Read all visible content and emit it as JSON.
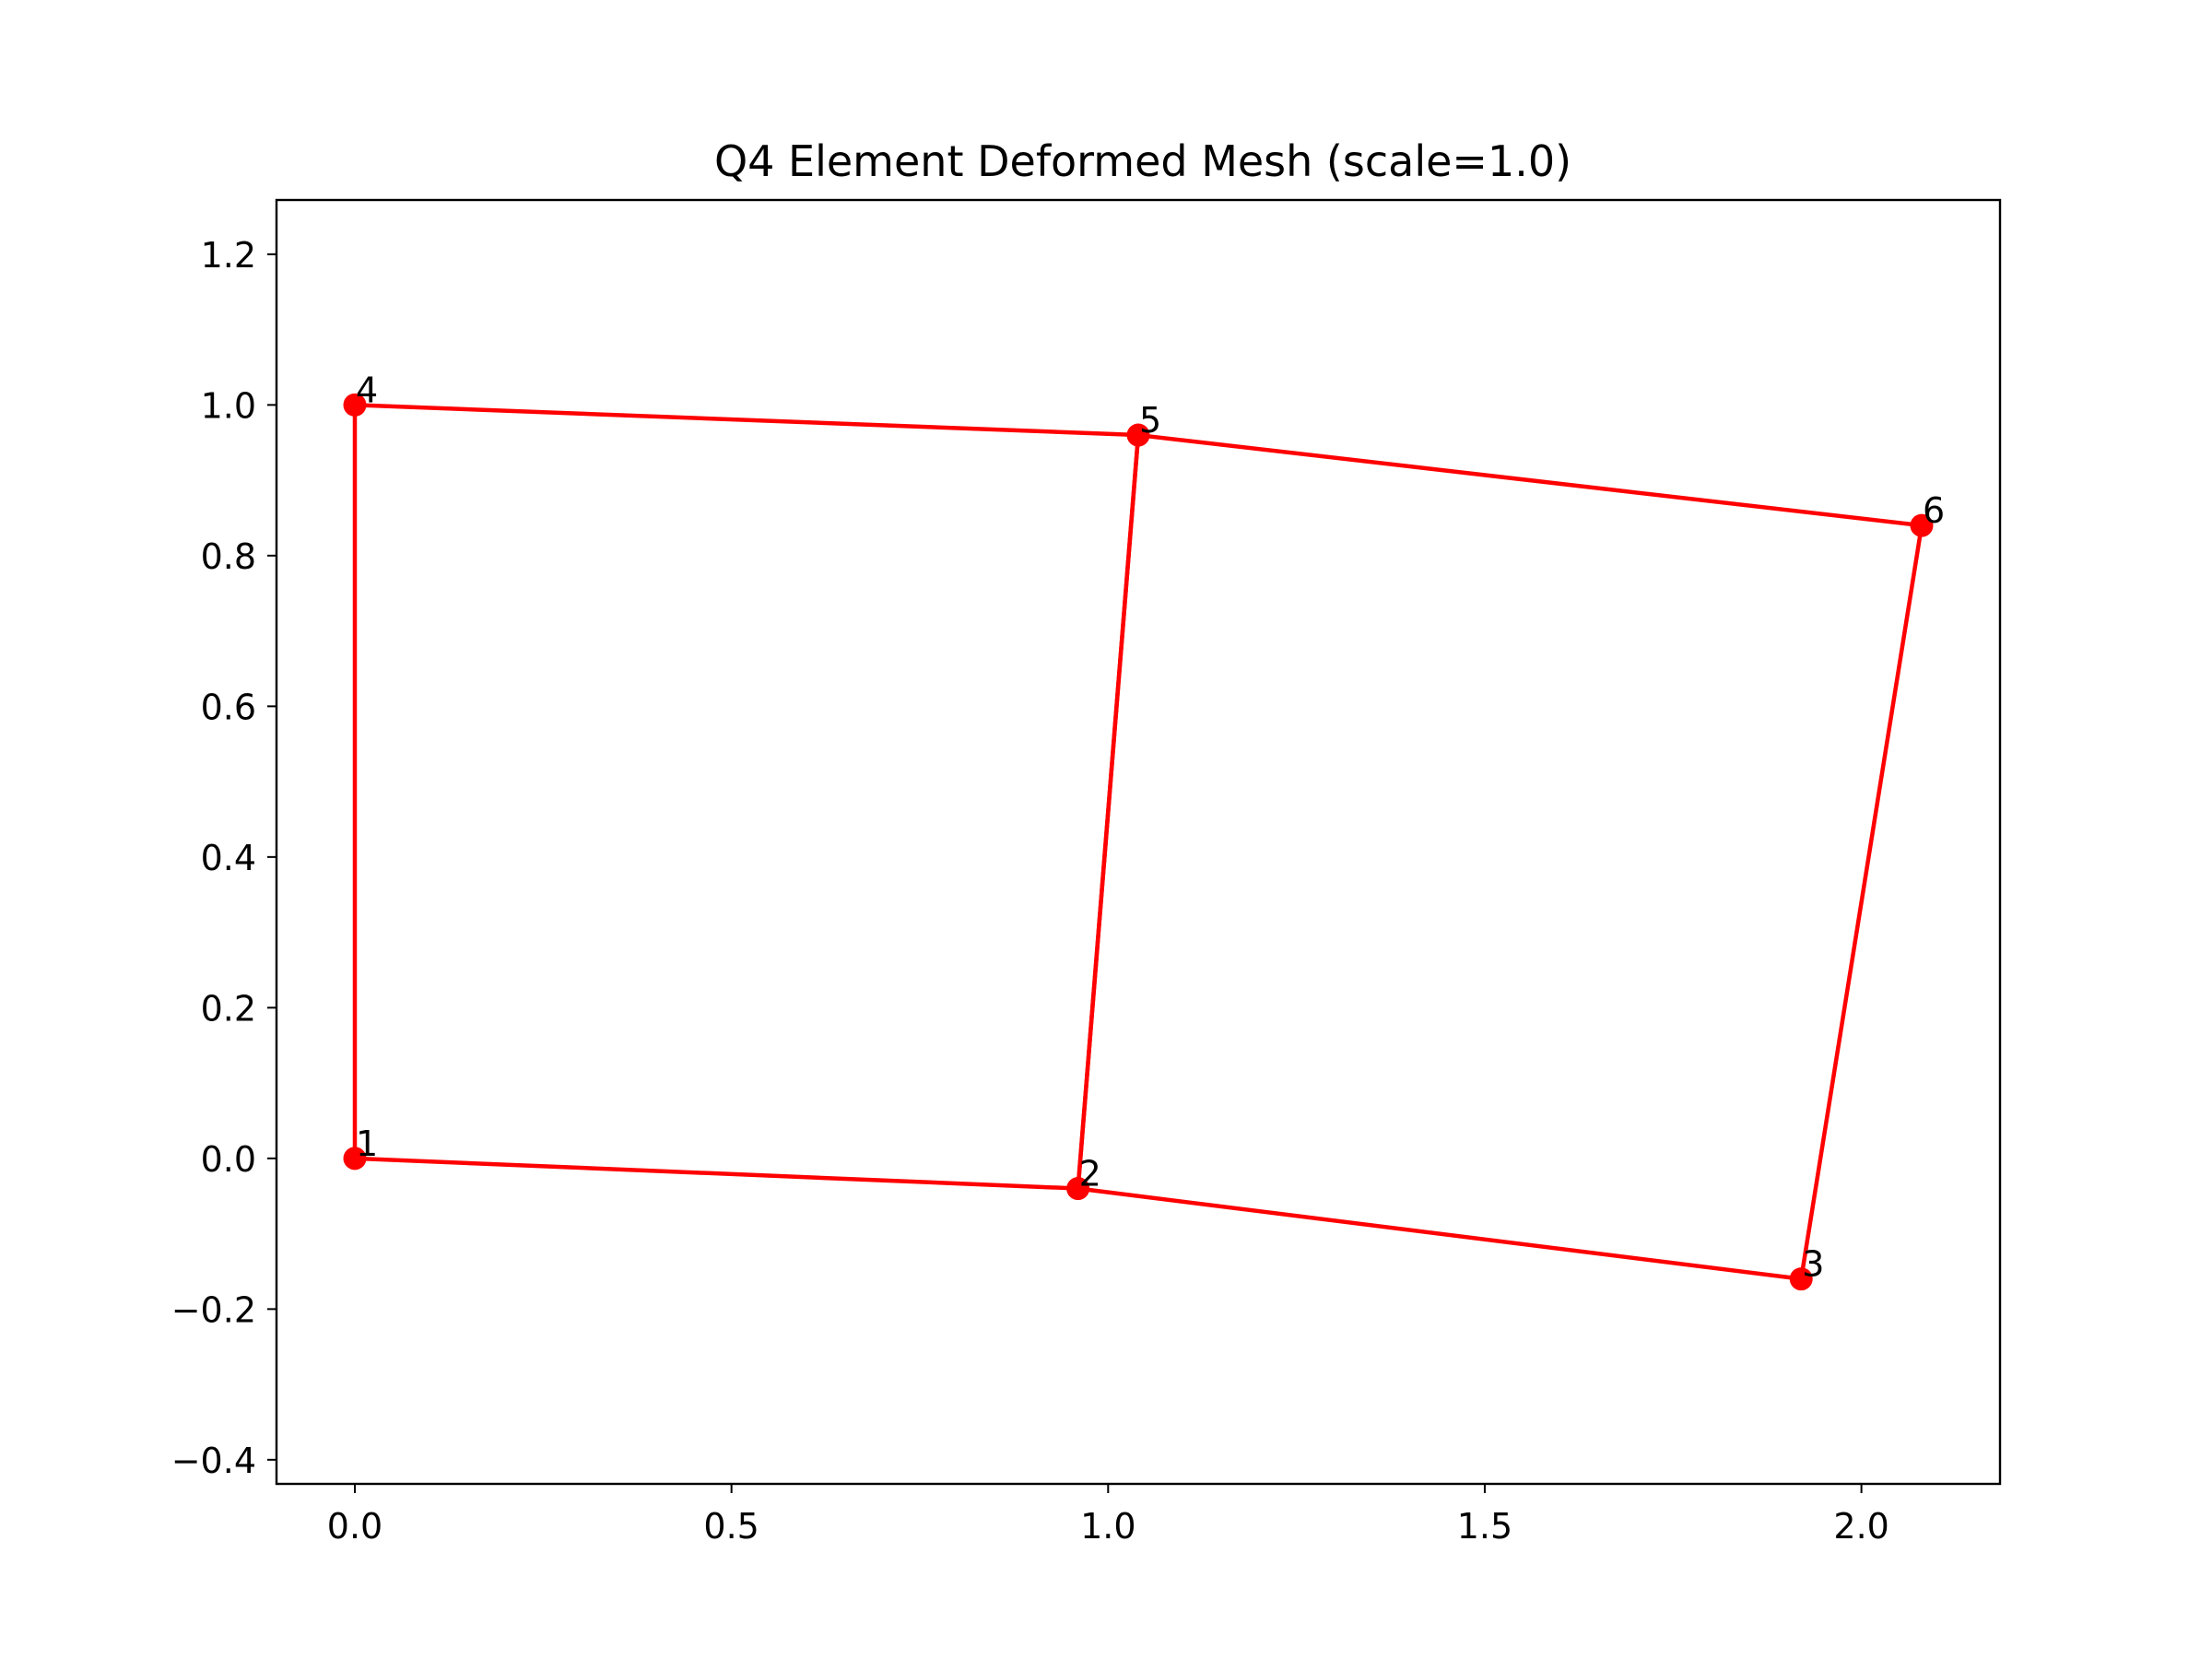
{
  "chart_data": {
    "type": "line",
    "title": "Q4 Element Deformed Mesh (scale=1.0)",
    "xlabel": "",
    "ylabel": "",
    "xlim": [
      -0.104,
      2.184
    ],
    "ylim": [
      -0.432,
      1.272
    ],
    "xticks": [
      {
        "value": 0.0,
        "label": "0.0"
      },
      {
        "value": 0.5,
        "label": "0.5"
      },
      {
        "value": 1.0,
        "label": "1.0"
      },
      {
        "value": 1.5,
        "label": "1.5"
      },
      {
        "value": 2.0,
        "label": "2.0"
      }
    ],
    "yticks": [
      {
        "value": -0.4,
        "label": "−0.4"
      },
      {
        "value": -0.2,
        "label": "−0.2"
      },
      {
        "value": 0.0,
        "label": "0.0"
      },
      {
        "value": 0.2,
        "label": "0.2"
      },
      {
        "value": 0.4,
        "label": "0.4"
      },
      {
        "value": 0.6,
        "label": "0.6"
      },
      {
        "value": 0.8,
        "label": "0.8"
      },
      {
        "value": 1.0,
        "label": "1.0"
      },
      {
        "value": 1.2,
        "label": "1.2"
      }
    ],
    "grid": false,
    "color": "#ff0000",
    "nodes": [
      {
        "id": "1",
        "x": 0.0,
        "y": 0.0
      },
      {
        "id": "2",
        "x": 0.96,
        "y": -0.04
      },
      {
        "id": "3",
        "x": 1.92,
        "y": -0.16
      },
      {
        "id": "4",
        "x": 0.0,
        "y": 1.0
      },
      {
        "id": "5",
        "x": 1.04,
        "y": 0.96
      },
      {
        "id": "6",
        "x": 2.08,
        "y": 0.84
      }
    ],
    "elements": [
      [
        "1",
        "2",
        "5",
        "4"
      ],
      [
        "2",
        "3",
        "6",
        "5"
      ]
    ]
  }
}
